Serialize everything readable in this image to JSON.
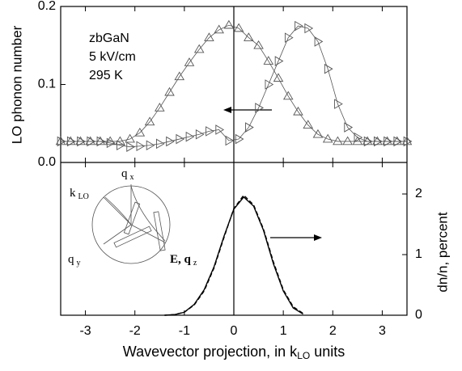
{
  "chart_data": [
    {
      "type": "line",
      "ylabel": "LO phonon number",
      "annotations": [
        "zbGaN",
        "5 kV/cm",
        "295 K"
      ],
      "xlim": [
        -3.5,
        3.5
      ],
      "xticks": [
        -3,
        -2,
        -1,
        0,
        1,
        2,
        3
      ],
      "ylim": [
        0,
        0.2
      ],
      "yticks": [
        {
          "value": 0,
          "label": "0.0"
        },
        {
          "value": 0.1,
          "label": "0.1"
        },
        {
          "value": 0.2,
          "label": "0.2"
        }
      ],
      "x": [
        -3.5,
        -3.3,
        -3.1,
        -2.9,
        -2.7,
        -2.5,
        -2.3,
        -2.1,
        -1.9,
        -1.7,
        -1.5,
        -1.3,
        -1.1,
        -0.9,
        -0.7,
        -0.5,
        -0.3,
        -0.1,
        0.1,
        0.3,
        0.5,
        0.7,
        0.9,
        1.1,
        1.3,
        1.5,
        1.7,
        1.9,
        2.1,
        2.3,
        2.5,
        2.7,
        2.9,
        3.1,
        3.3,
        3.5
      ],
      "series": [
        {
          "color": "#555555",
          "marker": "triangle-up",
          "values": [
            0.027,
            0.027,
            0.027,
            0.027,
            0.027,
            0.027,
            0.027,
            0.03,
            0.038,
            0.052,
            0.07,
            0.09,
            0.11,
            0.128,
            0.145,
            0.16,
            0.17,
            0.176,
            0.172,
            0.16,
            0.15,
            0.13,
            0.108,
            0.085,
            0.065,
            0.048,
            0.036,
            0.03,
            0.027,
            0.027,
            0.027,
            0.027,
            0.027,
            0.027,
            0.027,
            0.027
          ]
        },
        {
          "color": "#555555",
          "marker": "triangle-right",
          "values": [
            0.027,
            0.027,
            0.027,
            0.027,
            0.027,
            0.025,
            0.022,
            0.02,
            0.021,
            0.022,
            0.024,
            0.027,
            0.03,
            0.033,
            0.036,
            0.04,
            0.042,
            0.028,
            0.03,
            0.045,
            0.07,
            0.1,
            0.13,
            0.16,
            0.175,
            0.172,
            0.155,
            0.12,
            0.075,
            0.045,
            0.032,
            0.027,
            0.027,
            0.027,
            0.027,
            0.027
          ]
        }
      ]
    },
    {
      "type": "line",
      "xlabel": [
        "Wavevector projection, in k",
        "LO",
        " units"
      ],
      "ylabel": "dn/n, percent",
      "inset_labels": [
        {
          "text": "k",
          "sub": "LO"
        },
        {
          "text": "q",
          "sub": "x"
        },
        {
          "text": "q",
          "sub": "y"
        },
        {
          "text": "E, q",
          "sub": "z"
        }
      ],
      "xlim": [
        -3.5,
        3.5
      ],
      "xticks": [
        -3,
        -2,
        -1,
        0,
        1,
        2,
        3
      ],
      "y2lim": [
        0,
        2.52
      ],
      "y2ticks": [
        0,
        1,
        2
      ],
      "x": [
        -1.4,
        -1.2,
        -1.0,
        -0.8,
        -0.6,
        -0.4,
        -0.2,
        0,
        0.2,
        0.4,
        0.6,
        0.8,
        1.0,
        1.2,
        1.4
      ],
      "series": [
        {
          "color": "#000000",
          "axis": "y2",
          "dash": false,
          "values": [
            0,
            0.01,
            0.05,
            0.18,
            0.42,
            0.8,
            1.3,
            1.75,
            1.95,
            1.8,
            1.4,
            0.85,
            0.4,
            0.12,
            0.02
          ]
        },
        {
          "color": "#000000",
          "axis": "y2",
          "dash": true,
          "values": [
            0,
            0.01,
            0.05,
            0.17,
            0.4,
            0.78,
            1.28,
            1.76,
            1.98,
            1.82,
            1.42,
            0.88,
            0.42,
            0.14,
            0.03
          ]
        }
      ]
    }
  ]
}
